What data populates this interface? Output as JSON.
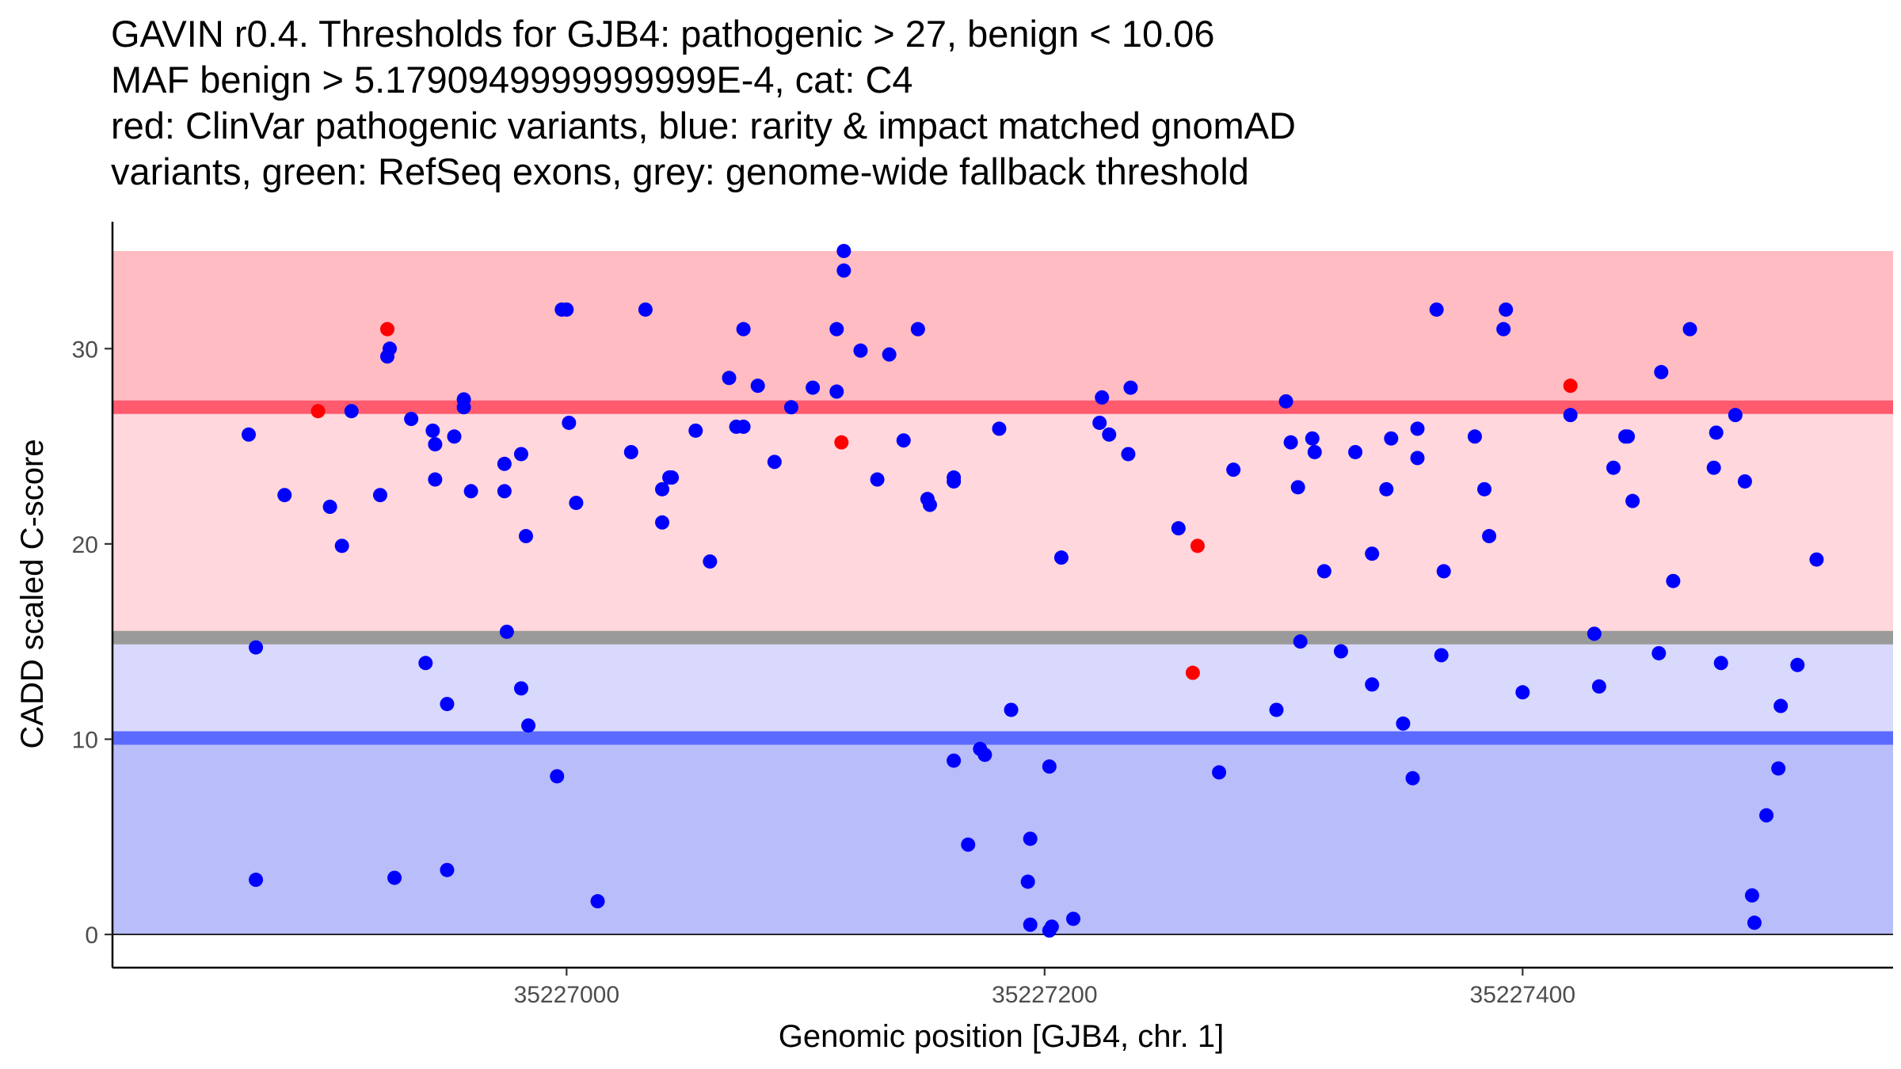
{
  "chart_data": {
    "type": "scatter",
    "title_lines": [
      "GAVIN r0.4. Thresholds for GJB4: pathogenic > 27, benign < 10.06",
      "MAF benign > 5.1790949999999999E-4, cat: C4",
      "red: ClinVar pathogenic variants, blue: rarity & impact matched gnomAD",
      "variants, green: RefSeq exons, grey: genome-wide fallback threshold"
    ],
    "xlabel": "Genomic position [GJB4, chr. 1]",
    "ylabel": "CADD scaled C-score",
    "xlim": [
      35226810,
      35227555
    ],
    "ylim": [
      -1.7,
      36.5
    ],
    "x_ticks": [
      35227000,
      35227200,
      35227400
    ],
    "x_tick_labels": [
      "35227000",
      "35227200",
      "35227400"
    ],
    "y_ticks": [
      0,
      10,
      20,
      30
    ],
    "y_tick_labels": [
      "0",
      "10",
      "20",
      "30"
    ],
    "bands": [
      {
        "name": "pathogenic-high-band",
        "y0": 27,
        "y1": 35,
        "color": "#ffbcc2"
      },
      {
        "name": "pathogenic-mid-band",
        "y0": 15.2,
        "y1": 27,
        "color": "#ffd7dc"
      },
      {
        "name": "benign-low-band",
        "y0": 10.06,
        "y1": 15.2,
        "color": "#d8d9fc"
      },
      {
        "name": "benign-band",
        "y0": 0,
        "y1": 10.06,
        "color": "#b9bdf9"
      }
    ],
    "thresholds": [
      {
        "name": "pathogenic-threshold-line",
        "y": 27,
        "color": "#ff5a6e"
      },
      {
        "name": "fallback-threshold-line",
        "y": 15.2,
        "color": "#9a9a9a"
      },
      {
        "name": "benign-threshold-line",
        "y": 10.06,
        "color": "#5b6bff"
      }
    ],
    "series": [
      {
        "name": "gnomAD",
        "color": "#0000ff",
        "points": [
          [
            35226867,
            25.6
          ],
          [
            35226870,
            14.7
          ],
          [
            35226870,
            2.8
          ],
          [
            35226882,
            22.5
          ],
          [
            35226901,
            21.9
          ],
          [
            35226906,
            19.9
          ],
          [
            35226910,
            26.8
          ],
          [
            35226922,
            22.5
          ],
          [
            35226925,
            29.6
          ],
          [
            35226926,
            30.0
          ],
          [
            35226928,
            2.9
          ],
          [
            35226935,
            26.4
          ],
          [
            35226941,
            13.9
          ],
          [
            35226944,
            25.8
          ],
          [
            35226945,
            23.3
          ],
          [
            35226945,
            25.1
          ],
          [
            35226950,
            11.8
          ],
          [
            35226950,
            3.3
          ],
          [
            35226953,
            25.5
          ],
          [
            35226957,
            27.4
          ],
          [
            35226957,
            27.0
          ],
          [
            35226960,
            22.7
          ],
          [
            35226974,
            22.7
          ],
          [
            35226974,
            24.1
          ],
          [
            35226975,
            15.5
          ],
          [
            35226981,
            24.6
          ],
          [
            35226981,
            12.6
          ],
          [
            35226983,
            20.4
          ],
          [
            35226984,
            10.7
          ],
          [
            35226996,
            8.1
          ],
          [
            35226998,
            32.0
          ],
          [
            35227000,
            32.0
          ],
          [
            35227001,
            26.2
          ],
          [
            35227004,
            22.1
          ],
          [
            35227013,
            1.7
          ],
          [
            35227027,
            24.7
          ],
          [
            35227033,
            32.0
          ],
          [
            35227040,
            21.1
          ],
          [
            35227040,
            22.8
          ],
          [
            35227043,
            23.4
          ],
          [
            35227044,
            23.4
          ],
          [
            35227054,
            25.8
          ],
          [
            35227060,
            19.1
          ],
          [
            35227068,
            28.5
          ],
          [
            35227071,
            26.0
          ],
          [
            35227074,
            26.0
          ],
          [
            35227074,
            31.0
          ],
          [
            35227080,
            28.1
          ],
          [
            35227087,
            24.2
          ],
          [
            35227094,
            27.0
          ],
          [
            35227103,
            28.0
          ],
          [
            35227113,
            31.0
          ],
          [
            35227113,
            27.8
          ],
          [
            35227116,
            35.0
          ],
          [
            35227116,
            34.0
          ],
          [
            35227123,
            29.9
          ],
          [
            35227130,
            23.3
          ],
          [
            35227135,
            29.7
          ],
          [
            35227141,
            25.3
          ],
          [
            35227147,
            31.0
          ],
          [
            35227151,
            22.3
          ],
          [
            35227152,
            22.0
          ],
          [
            35227162,
            23.4
          ],
          [
            35227162,
            23.2
          ],
          [
            35227162,
            8.9
          ],
          [
            35227168,
            4.6
          ],
          [
            35227173,
            9.5
          ],
          [
            35227175,
            9.2
          ],
          [
            35227181,
            25.9
          ],
          [
            35227186,
            11.5
          ],
          [
            35227193,
            2.7
          ],
          [
            35227194,
            4.9
          ],
          [
            35227194,
            0.5
          ],
          [
            35227202,
            8.6
          ],
          [
            35227202,
            0.2
          ],
          [
            35227203,
            0.4
          ],
          [
            35227207,
            19.3
          ],
          [
            35227212,
            0.8
          ],
          [
            35227223,
            26.2
          ],
          [
            35227224,
            27.5
          ],
          [
            35227227,
            25.6
          ],
          [
            35227235,
            24.6
          ],
          [
            35227236,
            28.0
          ],
          [
            35227256,
            20.8
          ],
          [
            35227273,
            8.3
          ],
          [
            35227279,
            23.8
          ],
          [
            35227297,
            11.5
          ],
          [
            35227301,
            27.3
          ],
          [
            35227303,
            25.2
          ],
          [
            35227306,
            22.9
          ],
          [
            35227307,
            15.0
          ],
          [
            35227312,
            25.4
          ],
          [
            35227313,
            24.7
          ],
          [
            35227317,
            18.6
          ],
          [
            35227324,
            14.5
          ],
          [
            35227330,
            24.7
          ],
          [
            35227337,
            12.8
          ],
          [
            35227337,
            19.5
          ],
          [
            35227343,
            22.8
          ],
          [
            35227345,
            25.4
          ],
          [
            35227350,
            10.8
          ],
          [
            35227354,
            8.0
          ],
          [
            35227356,
            25.9
          ],
          [
            35227356,
            24.4
          ],
          [
            35227364,
            32.0
          ],
          [
            35227366,
            14.3
          ],
          [
            35227367,
            18.6
          ],
          [
            35227380,
            25.5
          ],
          [
            35227384,
            22.8
          ],
          [
            35227386,
            20.4
          ],
          [
            35227392,
            31.0
          ],
          [
            35227393,
            32.0
          ],
          [
            35227400,
            12.4
          ],
          [
            35227420,
            26.6
          ],
          [
            35227430,
            15.4
          ],
          [
            35227432,
            12.7
          ],
          [
            35227438,
            23.9
          ],
          [
            35227443,
            25.5
          ],
          [
            35227444,
            25.5
          ],
          [
            35227446,
            22.2
          ],
          [
            35227457,
            14.4
          ],
          [
            35227458,
            28.8
          ],
          [
            35227463,
            18.1
          ],
          [
            35227470,
            31.0
          ],
          [
            35227480,
            23.9
          ],
          [
            35227481,
            25.7
          ],
          [
            35227483,
            13.9
          ],
          [
            35227489,
            26.6
          ],
          [
            35227493,
            23.2
          ],
          [
            35227496,
            2.0
          ],
          [
            35227497,
            0.6
          ],
          [
            35227502,
            6.1
          ],
          [
            35227507,
            8.5
          ],
          [
            35227508,
            11.7
          ],
          [
            35227515,
            13.8
          ],
          [
            35227523,
            19.2
          ]
        ]
      },
      {
        "name": "ClinVar",
        "color": "#ff0000",
        "points": [
          [
            35226896,
            26.8
          ],
          [
            35226925,
            31.0
          ],
          [
            35227115,
            25.2
          ],
          [
            35227262,
            13.4
          ],
          [
            35227264,
            19.9
          ],
          [
            35227420,
            28.1
          ]
        ]
      }
    ]
  }
}
